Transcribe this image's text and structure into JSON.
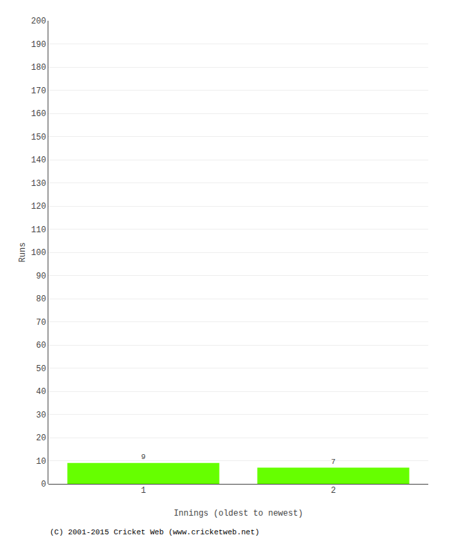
{
  "chart_data": {
    "type": "bar",
    "categories": [
      1,
      2
    ],
    "values": [
      9,
      7
    ],
    "color": "#66ff00",
    "xlabel": "Innings (oldest to newest)",
    "ylabel": "Runs",
    "ylim": [
      0,
      200
    ],
    "yticks": [
      0,
      10,
      20,
      30,
      40,
      50,
      60,
      70,
      80,
      90,
      100,
      110,
      120,
      130,
      140,
      150,
      160,
      170,
      180,
      190,
      200
    ],
    "grid": true,
    "data_labels": true,
    "annotations": [
      "(C) 2001-2015 Cricket Web (www.cricketweb.net)"
    ]
  }
}
